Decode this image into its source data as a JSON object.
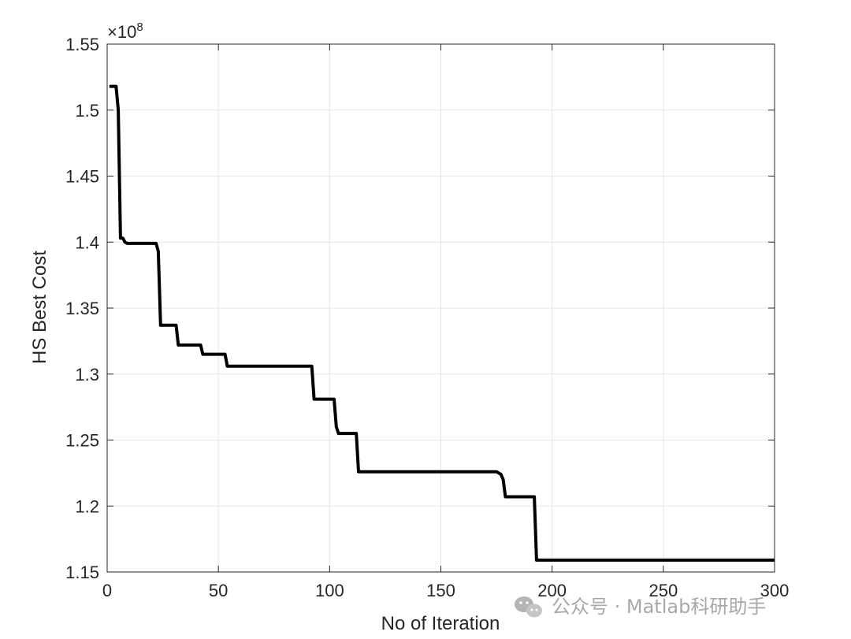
{
  "chart_data": {
    "type": "line",
    "title": "",
    "xlabel": "No of Iteration",
    "ylabel": "HS Best Cost",
    "exponent_label": "×10",
    "exponent_power": "8",
    "xlim": [
      0,
      300
    ],
    "ylim": [
      1.15,
      1.55
    ],
    "xticks": [
      0,
      50,
      100,
      150,
      200,
      250,
      300
    ],
    "yticks": [
      1.15,
      1.2,
      1.25,
      1.3,
      1.35,
      1.4,
      1.45,
      1.5,
      1.55
    ],
    "xtick_labels": [
      "0",
      "50",
      "100",
      "150",
      "200",
      "250",
      "300"
    ],
    "ytick_labels": [
      "1.15",
      "1.2",
      "1.25",
      "1.3",
      "1.35",
      "1.4",
      "1.45",
      "1.5",
      "1.55"
    ],
    "grid": true,
    "line_color": "#000000",
    "series": [
      {
        "x": [
          1,
          4,
          5,
          6,
          7,
          8,
          9,
          22,
          23,
          24,
          31,
          32,
          42,
          43,
          53,
          54,
          92,
          93,
          102,
          103,
          104,
          112,
          113,
          175,
          177,
          178,
          179,
          192,
          193,
          300
        ],
        "y": [
          1.518,
          1.518,
          1.5,
          1.403,
          1.403,
          1.4,
          1.399,
          1.399,
          1.393,
          1.337,
          1.337,
          1.322,
          1.322,
          1.315,
          1.315,
          1.306,
          1.306,
          1.281,
          1.281,
          1.26,
          1.255,
          1.255,
          1.226,
          1.226,
          1.224,
          1.22,
          1.207,
          1.207,
          1.159,
          1.159
        ]
      }
    ]
  },
  "watermark": {
    "text": "公众号 · Matlab科研助手",
    "icon": "wechat-icon"
  }
}
